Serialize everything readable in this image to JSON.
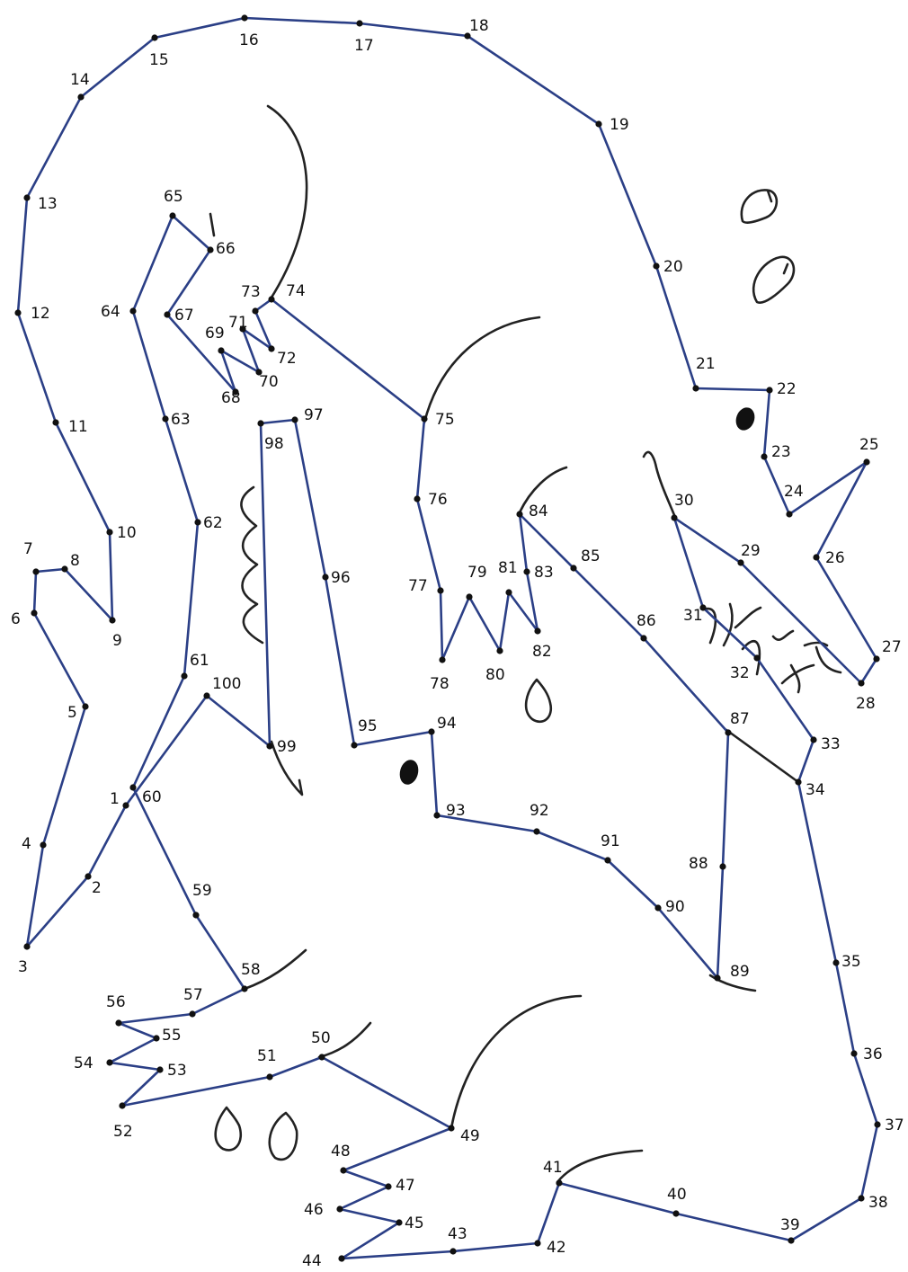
{
  "puzzle": {
    "labels": [
      "1",
      "2",
      "3",
      "4",
      "5",
      "6",
      "7",
      "8",
      "9",
      "10",
      "11",
      "12",
      "13",
      "14",
      "15",
      "16",
      "17",
      "18",
      "19",
      "20",
      "21",
      "22",
      "23",
      "24",
      "25",
      "26",
      "27",
      "28",
      "29",
      "30",
      "31",
      "32",
      "33",
      "34",
      "35",
      "36",
      "37",
      "38",
      "39",
      "40",
      "41",
      "42",
      "43",
      "44",
      "45",
      "46",
      "47",
      "48",
      "49",
      "50",
      "51",
      "52",
      "53",
      "54",
      "55",
      "56",
      "57",
      "58",
      "59",
      "60",
      "61",
      "62",
      "63",
      "64",
      "65",
      "66",
      "67",
      "68",
      "69",
      "70",
      "71",
      "72",
      "73",
      "74",
      "75",
      "76",
      "77",
      "78",
      "79",
      "80",
      "81",
      "82",
      "83",
      "84",
      "85",
      "86",
      "87",
      "88",
      "89",
      "90",
      "91",
      "92",
      "93",
      "94",
      "95",
      "96",
      "97",
      "98",
      "99",
      "100"
    ],
    "colors": {
      "trace": "#2b3f86",
      "ink": "#111111",
      "background": "#ffffff"
    }
  }
}
